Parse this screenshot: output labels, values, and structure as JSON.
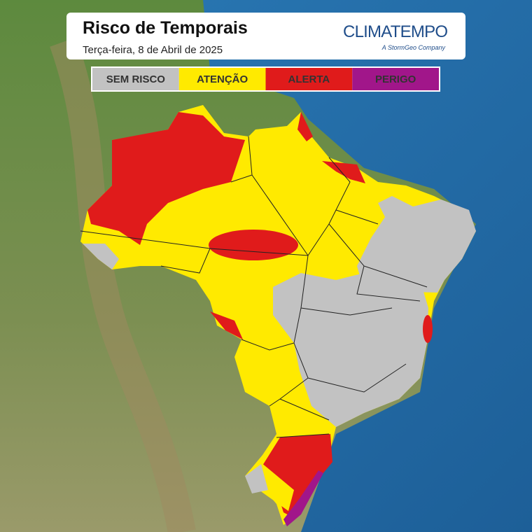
{
  "header": {
    "title": "Risco de Temporais",
    "subtitle": "Terça-feira, 8 de Abril de 2025",
    "logo": "CLIMATEMPO",
    "logo_tagline": "A StormGeo Company"
  },
  "legend": [
    {
      "label": "SEM RISCO",
      "color": "#c2c2c2"
    },
    {
      "label": "ATENÇÃO",
      "color": "#ffea00"
    },
    {
      "label": "ALERTA",
      "color": "#e01b1b"
    },
    {
      "label": "PERIGO",
      "color": "#a1168a"
    }
  ]
}
